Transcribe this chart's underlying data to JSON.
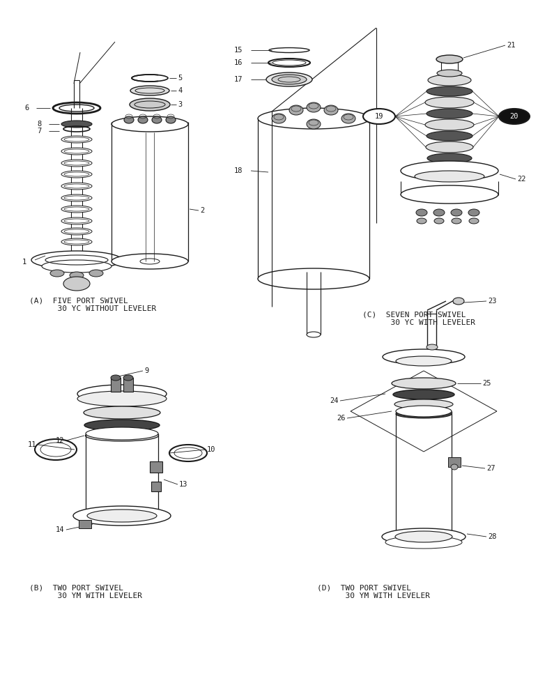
{
  "background_color": "#ffffff",
  "line_color": "#1a1a1a",
  "captions": {
    "A": "(A)  FIVE PORT SWIVEL\n      30 YC WITHOUT LEVELER",
    "B": "(B)  TWO PORT SWIVEL\n      30 YM WITH LEVELER",
    "C": "(C)  SEVEN PORT SWIVEL\n      30 YC WITH LEVELER",
    "D": "(D)  TWO PORT SWIVEL\n      30 YM WITH LEVELER"
  },
  "font_size_caption": 8.0,
  "font_size_label": 7.5,
  "font_name": "monospace",
  "figsize": [
    7.72,
    10.0
  ],
  "dpi": 100,
  "xlim": [
    0,
    772
  ],
  "ylim": [
    0,
    1000
  ]
}
